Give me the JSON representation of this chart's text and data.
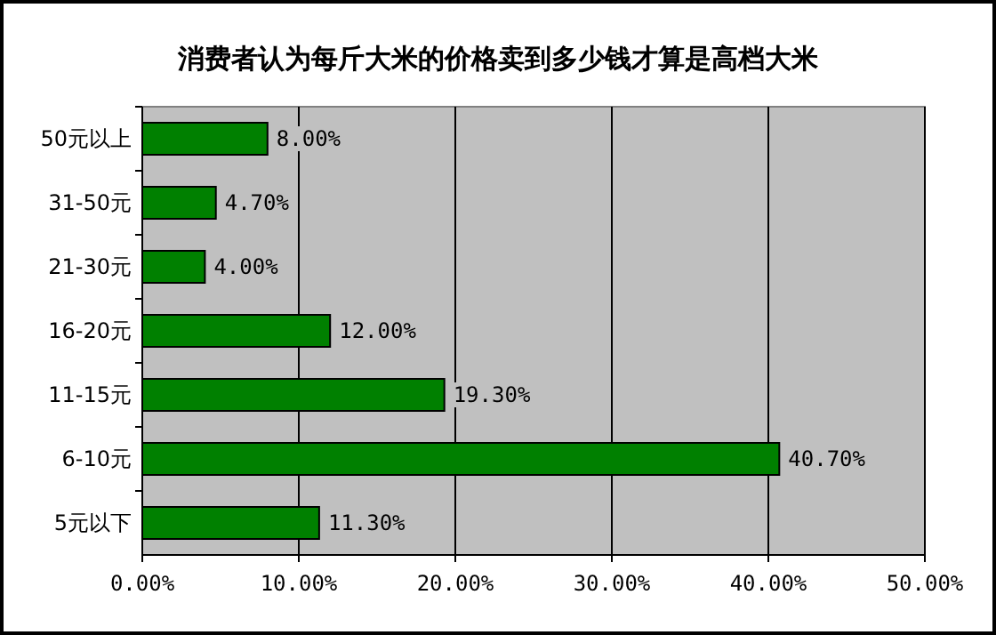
{
  "chart_data": {
    "type": "bar",
    "orientation": "horizontal",
    "title": "消费者认为每斤大米的价格卖到多少钱才算是高档大米",
    "categories": [
      "50元以上",
      "31-50元",
      "21-30元",
      "16-20元",
      "11-15元",
      "6-10元",
      "5元以下"
    ],
    "values": [
      8,
      4.7,
      4,
      12,
      19.3,
      40.7,
      11.3
    ],
    "value_labels": [
      "8.00%",
      "4.70%",
      "4.00%",
      "12.00%",
      "19.30%",
      "40.70%",
      "11.30%"
    ],
    "color": "#008000",
    "xlim": [
      0,
      50
    ],
    "xticks": [
      {
        "value": 0,
        "label": "0.00%"
      },
      {
        "value": 10,
        "label": "10.00%"
      },
      {
        "value": 20,
        "label": "20.00%"
      },
      {
        "value": 30,
        "label": "30.00%"
      },
      {
        "value": 40,
        "label": "40.00%"
      },
      {
        "value": 50,
        "label": "50.00%"
      }
    ],
    "grid": "x"
  }
}
